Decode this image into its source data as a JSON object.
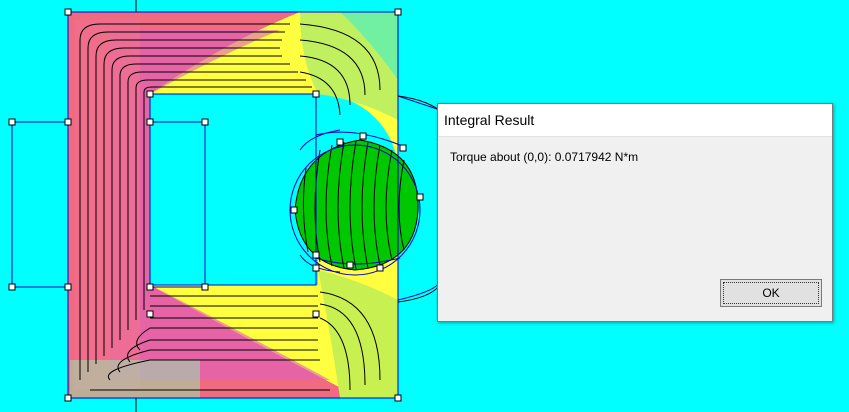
{
  "canvas": {
    "background": "#00FFFF",
    "outline_color": "#0000CC",
    "contour_color": "#000000",
    "rotor_color": "#00CC00",
    "palette": [
      "#F06080",
      "#E040F0",
      "#FF60A0",
      "#F0F000",
      "#80F080",
      "#00FFFF"
    ]
  },
  "dialog": {
    "title": "Integral Result",
    "result": "Torque about (0,0): 0.0717942 N*m",
    "ok_label": "OK"
  }
}
